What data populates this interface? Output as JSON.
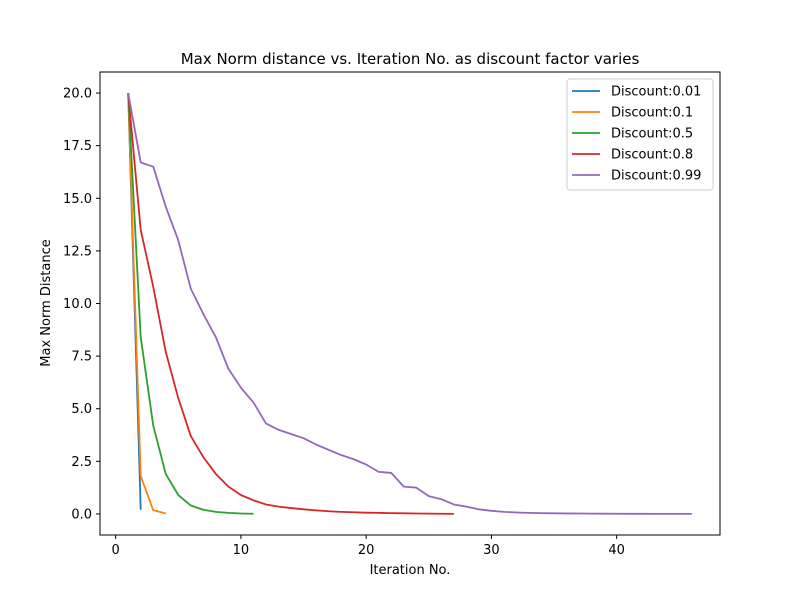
{
  "chart_data": {
    "type": "line",
    "title": "Max Norm distance vs. Iteration No. as discount factor varies",
    "xlabel": "Iteration No.",
    "ylabel": "Max Norm Distance",
    "xlim": [
      -1.25,
      48.25
    ],
    "ylim": [
      -1.0,
      21.0
    ],
    "xticks": [
      0,
      10,
      20,
      30,
      40
    ],
    "yticks": [
      0.0,
      2.5,
      5.0,
      7.5,
      10.0,
      12.5,
      15.0,
      17.5,
      20.0
    ],
    "xtick_labels": [
      "0",
      "10",
      "20",
      "30",
      "40"
    ],
    "ytick_labels": [
      "0.0",
      "2.5",
      "5.0",
      "7.5",
      "10.0",
      "12.5",
      "15.0",
      "17.5",
      "20.0"
    ],
    "grid": false,
    "legend_position": "top-right",
    "series": [
      {
        "name": "Discount:0.01",
        "color": "#1f77b4",
        "x": [
          1,
          2
        ],
        "y": [
          20.0,
          0.2
        ]
      },
      {
        "name": "Discount:0.1",
        "color": "#ff7f0e",
        "x": [
          1,
          2,
          3,
          4
        ],
        "y": [
          20.0,
          1.8,
          0.18,
          0.02
        ]
      },
      {
        "name": "Discount:0.5",
        "color": "#2ca02c",
        "x": [
          1,
          2,
          3,
          4,
          5,
          6,
          7,
          8,
          9,
          10,
          11
        ],
        "y": [
          20.0,
          8.4,
          4.2,
          1.9,
          0.9,
          0.4,
          0.2,
          0.1,
          0.05,
          0.02,
          0.01
        ]
      },
      {
        "name": "Discount:0.8",
        "color": "#d62728",
        "x": [
          1,
          2,
          3,
          4,
          5,
          6,
          7,
          8,
          9,
          10,
          11,
          12,
          13,
          14,
          15,
          16,
          17,
          18,
          19,
          20,
          21,
          22,
          23,
          24,
          25,
          26,
          27
        ],
        "y": [
          20.0,
          13.5,
          10.8,
          7.7,
          5.5,
          3.7,
          2.7,
          1.9,
          1.3,
          0.9,
          0.65,
          0.45,
          0.35,
          0.28,
          0.22,
          0.17,
          0.13,
          0.1,
          0.08,
          0.06,
          0.05,
          0.04,
          0.03,
          0.02,
          0.015,
          0.01,
          0.005
        ]
      },
      {
        "name": "Discount:0.99",
        "color": "#9467bd",
        "x": [
          1,
          2,
          3,
          4,
          5,
          6,
          7,
          8,
          9,
          10,
          11,
          12,
          13,
          14,
          15,
          16,
          17,
          18,
          19,
          20,
          21,
          22,
          23,
          24,
          25,
          26,
          27,
          28,
          29,
          30,
          31,
          32,
          33,
          34,
          35,
          36,
          37,
          38,
          39,
          40,
          41,
          42,
          43,
          44,
          45,
          46
        ],
        "y": [
          20.0,
          16.7,
          16.5,
          14.6,
          13.0,
          10.7,
          9.5,
          8.4,
          6.9,
          6.0,
          5.3,
          4.3,
          4.0,
          3.8,
          3.6,
          3.3,
          3.05,
          2.8,
          2.6,
          2.35,
          2.0,
          1.95,
          1.3,
          1.25,
          0.85,
          0.7,
          0.45,
          0.35,
          0.22,
          0.15,
          0.1,
          0.07,
          0.05,
          0.04,
          0.03,
          0.025,
          0.02,
          0.015,
          0.012,
          0.01,
          0.008,
          0.006,
          0.005,
          0.004,
          0.003,
          0.002
        ]
      }
    ]
  }
}
